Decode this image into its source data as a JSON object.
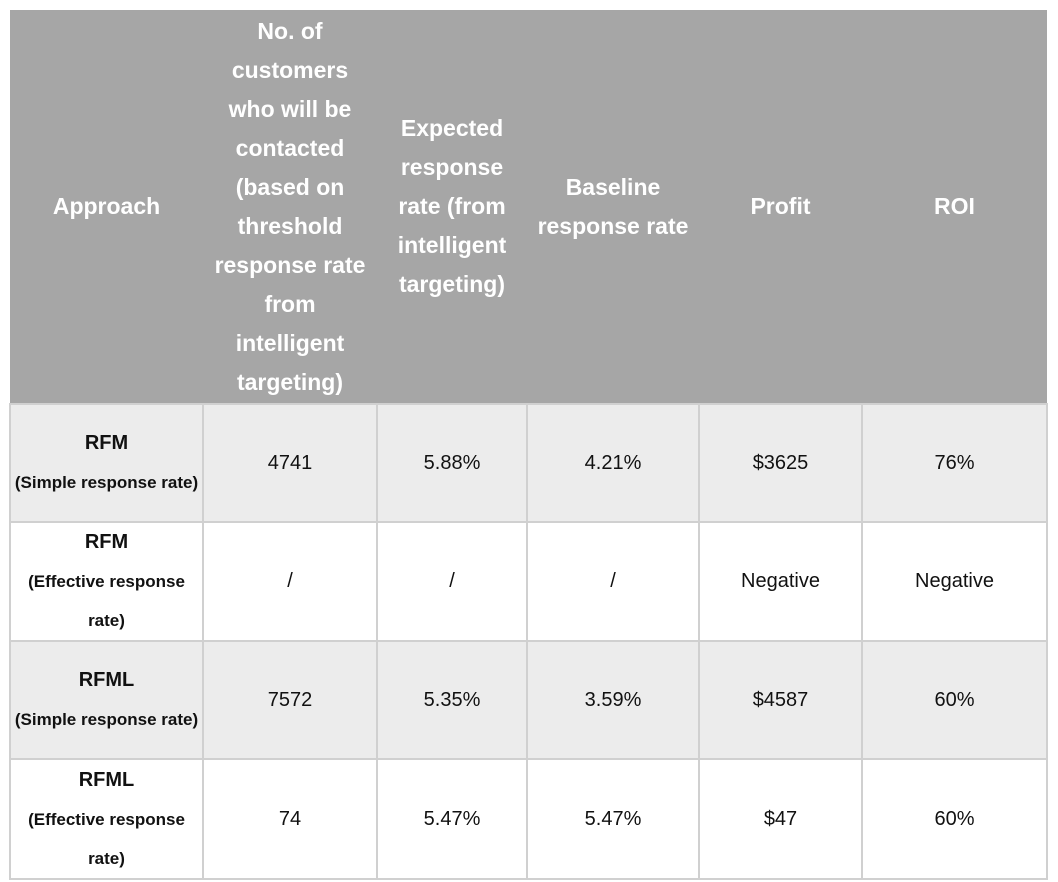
{
  "table": {
    "headers": [
      "Approach",
      "No. of customers who will be contacted (based on threshold response rate from intelligent targeting)",
      "Expected response rate (from intelligent targeting)",
      "Baseline response rate",
      "Profit",
      "ROI"
    ],
    "rows": [
      {
        "approach": "RFM",
        "approach_sub": "(Simple response rate)",
        "customers": "4741",
        "expected_rate": "5.88%",
        "baseline_rate": "4.21%",
        "profit": "$3625",
        "roi": "76%"
      },
      {
        "approach": "RFM",
        "approach_sub": "(Effective response rate)",
        "customers": "/",
        "expected_rate": "/",
        "baseline_rate": "/",
        "profit": "Negative",
        "roi": "Negative"
      },
      {
        "approach": "RFML",
        "approach_sub": "(Simple response rate)",
        "customers": "7572",
        "expected_rate": "5.35%",
        "baseline_rate": "3.59%",
        "profit": "$4587",
        "roi": "60%"
      },
      {
        "approach": "RFML",
        "approach_sub": "(Effective response rate)",
        "customers": "74",
        "expected_rate": "5.47%",
        "baseline_rate": "5.47%",
        "profit": "$47",
        "roi": "60%"
      }
    ]
  },
  "colors": {
    "header_bg": "#a6a6a6",
    "header_text": "#ffffff",
    "row_shaded_bg": "#ececec",
    "row_plain_bg": "#ffffff",
    "grid_line": "#d0d0d0"
  }
}
